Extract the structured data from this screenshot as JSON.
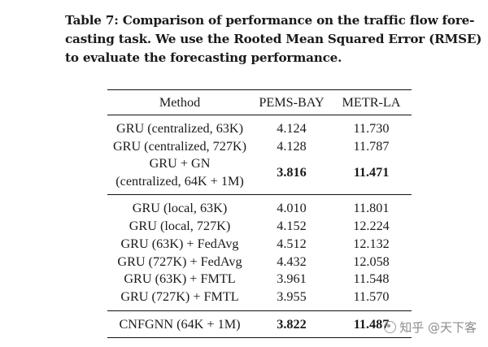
{
  "caption": {
    "line1": "Table 7: Comparison of performance on the traffic flow fore-",
    "line2": "casting task. We use the Rooted Mean Squared Error (RMSE)",
    "line3": "to evaluate the forecasting performance."
  },
  "table": {
    "headers": [
      "Method",
      "PEMS-BAY",
      "METR-LA"
    ],
    "group1": [
      {
        "method": "GRU (centralized, 63K)",
        "pems": "4.124",
        "metr": "11.730",
        "bold": false
      },
      {
        "method": "GRU (centralized, 727K)",
        "pems": "4.128",
        "metr": "11.787",
        "bold": false
      },
      {
        "method_line1": "GRU + GN",
        "method_line2": "(centralized, 64K + 1M)",
        "pems": "3.816",
        "metr": "11.471",
        "bold": true
      }
    ],
    "group2": [
      {
        "method": "GRU (local, 63K)",
        "pems": "4.010",
        "metr": "11.801"
      },
      {
        "method": "GRU (local, 727K)",
        "pems": "4.152",
        "metr": "12.224"
      },
      {
        "method": "GRU (63K) + FedAvg",
        "pems": "4.512",
        "metr": "12.132"
      },
      {
        "method": "GRU (727K) + FedAvg",
        "pems": "4.432",
        "metr": "12.058"
      },
      {
        "method": "GRU (63K) + FMTL",
        "pems": "3.961",
        "metr": "11.548"
      },
      {
        "method": "GRU (727K) + FMTL",
        "pems": "3.955",
        "metr": "11.570"
      }
    ],
    "group3": [
      {
        "method": "CNFGNN (64K + 1M)",
        "pems": "3.822",
        "metr": "11.487",
        "bold": true
      }
    ]
  },
  "watermark": {
    "text": "知乎 @天下客",
    "icon": "zhihu-logo-icon"
  },
  "chart_data": {
    "type": "table",
    "title": "Table 7: Comparison of performance on the traffic flow forecasting task. We use the Rooted Mean Squared Error (RMSE) to evaluate the forecasting performance.",
    "columns": [
      "Method",
      "PEMS-BAY",
      "METR-LA"
    ],
    "rows": [
      [
        "GRU (centralized, 63K)",
        4.124,
        11.73
      ],
      [
        "GRU (centralized, 727K)",
        4.128,
        11.787
      ],
      [
        "GRU + GN (centralized, 64K + 1M)",
        3.816,
        11.471
      ],
      [
        "GRU (local, 63K)",
        4.01,
        11.801
      ],
      [
        "GRU (local, 727K)",
        4.152,
        12.224
      ],
      [
        "GRU (63K) + FedAvg",
        4.512,
        12.132
      ],
      [
        "GRU (727K) + FedAvg",
        4.432,
        12.058
      ],
      [
        "GRU (63K) + FMTL",
        3.961,
        11.548
      ],
      [
        "GRU (727K) + FMTL",
        3.955,
        11.57
      ],
      [
        "CNFGNN (64K + 1M)",
        3.822,
        11.487
      ]
    ]
  }
}
